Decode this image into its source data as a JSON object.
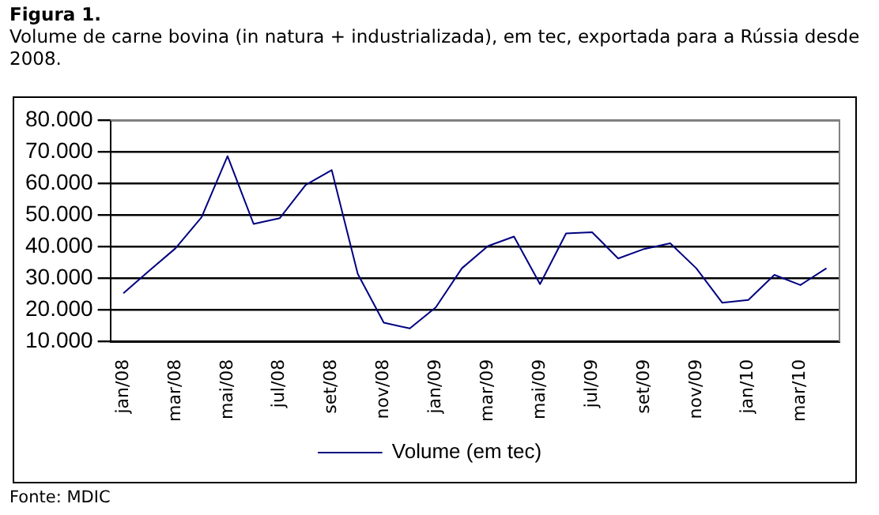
{
  "chart_data": {
    "type": "line",
    "title": "Figura 1.",
    "subtitle": "Volume de carne bovina (in natura + industrializada), em tec, exportada para a Rússia desde 2008.",
    "categories": [
      "jan/08",
      null,
      "mar/08",
      null,
      "mai/08",
      null,
      "jul/08",
      null,
      "set/08",
      null,
      "nov/08",
      null,
      "jan/09",
      null,
      "mar/09",
      null,
      "mai/09",
      null,
      "jul/09",
      null,
      "set/09",
      null,
      "nov/09",
      null,
      "jan/10",
      null,
      "mar/10",
      null
    ],
    "series": [
      {
        "name": "Volume (em tec)",
        "color": "#000080",
        "values": [
          25300,
          32500,
          39500,
          49300,
          68600,
          47200,
          49000,
          59500,
          64200,
          31400,
          16000,
          14200,
          20900,
          33200,
          40200,
          43200,
          28200,
          44200,
          44600,
          36300,
          39300,
          41100,
          33200,
          22300,
          23200,
          31100,
          27900,
          33200
        ]
      }
    ],
    "ylim": [
      10000,
      80000
    ],
    "yticks": [
      {
        "value": 10000,
        "label": "10.000"
      },
      {
        "value": 20000,
        "label": "20.000"
      },
      {
        "value": 30000,
        "label": "30.000"
      },
      {
        "value": 40000,
        "label": "40.000"
      },
      {
        "value": 50000,
        "label": "50.000"
      },
      {
        "value": 60000,
        "label": "60.000"
      },
      {
        "value": 70000,
        "label": "70.000"
      },
      {
        "value": 80000,
        "label": "80.000"
      }
    ],
    "grid": "y",
    "legend": "bottom",
    "marker": "none",
    "line_style": "solid",
    "annotations": [
      "Fonte: MDIC"
    ]
  }
}
